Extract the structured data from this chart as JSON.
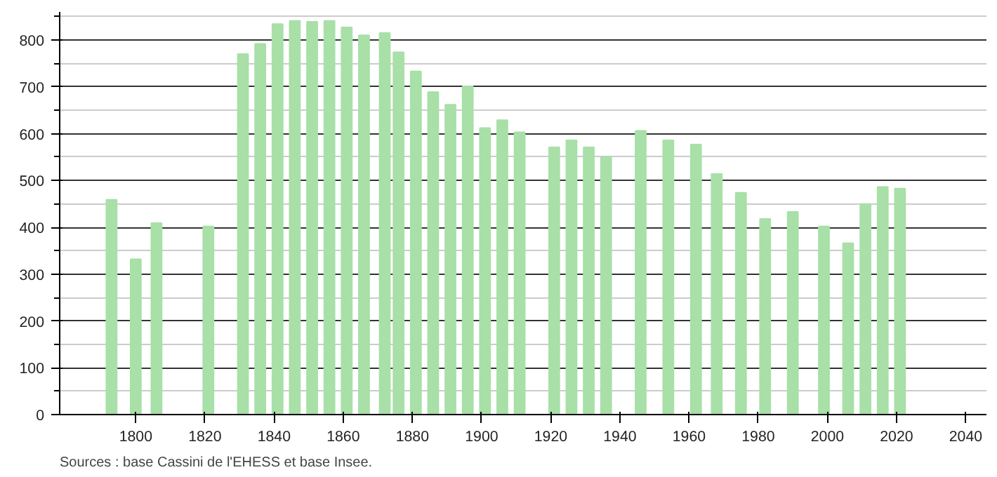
{
  "chart_data": {
    "type": "bar",
    "x": [
      1793,
      1800,
      1806,
      1821,
      1831,
      1836,
      1841,
      1846,
      1851,
      1856,
      1861,
      1866,
      1872,
      1876,
      1881,
      1886,
      1891,
      1896,
      1901,
      1906,
      1911,
      1921,
      1926,
      1931,
      1936,
      1946,
      1954,
      1962,
      1968,
      1975,
      1982,
      1990,
      1999,
      2006,
      2011,
      2016,
      2021
    ],
    "values": [
      459,
      332,
      409,
      402,
      770,
      792,
      834,
      841,
      839,
      841,
      827,
      810,
      815,
      774,
      733,
      689,
      662,
      701,
      612,
      629,
      603,
      571,
      586,
      571,
      550,
      606,
      586,
      577,
      514,
      474,
      418,
      433,
      402,
      366,
      450,
      486,
      483
    ],
    "color": "#a8e0a8",
    "xlim": [
      1778,
      2046
    ],
    "ylim": [
      0,
      860
    ],
    "xticks": [
      1800,
      1820,
      1840,
      1860,
      1880,
      1900,
      1920,
      1940,
      1960,
      1980,
      2000,
      2020,
      2040
    ],
    "yticks": [
      0,
      100,
      200,
      300,
      400,
      500,
      600,
      700,
      800
    ],
    "grid": "y",
    "annotations": [
      "Sources : base Cassini de l'EHESS et base Insee."
    ]
  }
}
